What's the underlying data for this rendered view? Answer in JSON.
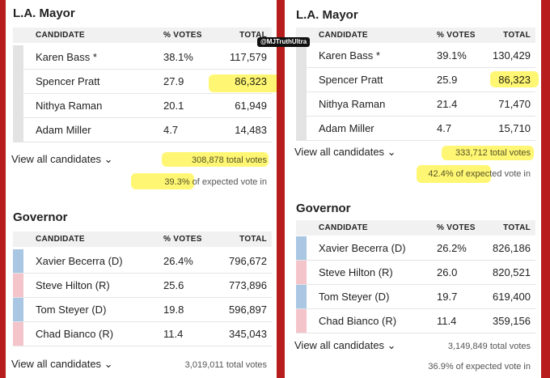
{
  "watermark": "@MJTruthUltra",
  "panels": [
    {
      "sections": [
        {
          "title": "L.A. Mayor",
          "columns": [
            "CANDIDATE",
            "% VOTES",
            "TOTAL"
          ],
          "rows": [
            [
              "Karen Bass *",
              "38.1%",
              "117,579"
            ],
            [
              "Spencer Pratt",
              "27.9",
              "86,323"
            ],
            [
              "Nithya Raman",
              "20.1",
              "61,949"
            ],
            [
              "Adam Miller",
              "4.7",
              "14,483"
            ]
          ],
          "link": "View all candidates ⌄",
          "total_votes": "308,878 total votes",
          "expected": "39.3% of expected vote in"
        },
        {
          "title": "Governor",
          "columns": [
            "CANDIDATE",
            "% VOTES",
            "TOTAL"
          ],
          "rows": [
            [
              "Xavier Becerra (D)",
              "26.4%",
              "796,672"
            ],
            [
              "Steve Hilton (R)",
              "25.6",
              "773,896"
            ],
            [
              "Tom Steyer (D)",
              "19.8",
              "596,897"
            ],
            [
              "Chad Bianco (R)",
              "11.4",
              "345,043"
            ]
          ],
          "link": "View all candidates ⌄",
          "total_votes": "3,019,011 total votes"
        }
      ]
    },
    {
      "sections": [
        {
          "title": "L.A. Mayor",
          "columns": [
            "CANDIDATE",
            "% VOTES",
            "TOTAL"
          ],
          "rows": [
            [
              "Karen Bass *",
              "39.1%",
              "130,429"
            ],
            [
              "Spencer Pratt",
              "25.9",
              "86,323"
            ],
            [
              "Nithya Raman",
              "21.4",
              "71,470"
            ],
            [
              "Adam Miller",
              "4.7",
              "15,710"
            ]
          ],
          "link": "View all candidates ⌄",
          "total_votes": "333,712 total votes",
          "expected": "42.4% of expected vote in"
        },
        {
          "title": "Governor",
          "columns": [
            "CANDIDATE",
            "% VOTES",
            "TOTAL"
          ],
          "rows": [
            [
              "Xavier Becerra (D)",
              "26.2%",
              "826,186"
            ],
            [
              "Steve Hilton (R)",
              "26.0",
              "820,521"
            ],
            [
              "Tom Steyer (D)",
              "19.7",
              "619,400"
            ],
            [
              "Chad Bianco (R)",
              "11.4",
              "359,156"
            ]
          ],
          "link": "View all candidates ⌄",
          "total_votes": "3,149,849 total votes",
          "expected": "36.9% of expected vote in"
        }
      ]
    }
  ]
}
